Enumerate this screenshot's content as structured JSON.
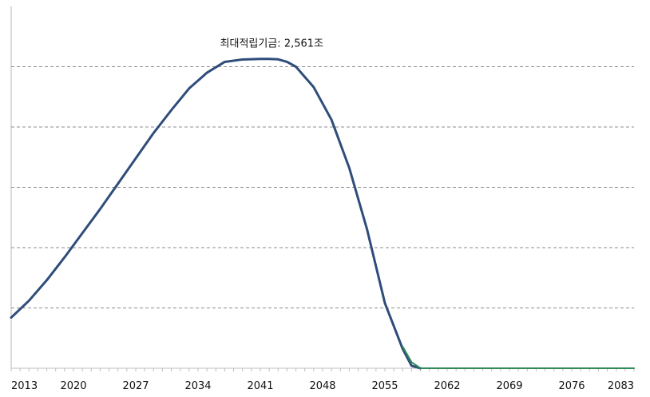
{
  "chart_data": {
    "type": "line",
    "title": "",
    "xlabel": "",
    "ylabel": "",
    "x_ticks": [
      "2013",
      "2020",
      "2027",
      "2034",
      "2041",
      "2048",
      "2055",
      "2062",
      "2069",
      "2076",
      "2083"
    ],
    "xlim": [
      2013,
      2083
    ],
    "ylim": [
      0,
      3000
    ],
    "y_gridlines": [
      500,
      1000,
      1500,
      2000,
      2500
    ],
    "y_tick_labels_visible": false,
    "grid": "horizontal-dashed",
    "legend": "none",
    "annotation": {
      "text": "최대적립기금: 2,561조",
      "x": 2043,
      "y": 2561
    },
    "series": [
      {
        "color": "#2f4d7a",
        "x": [
          2013,
          2015,
          2017,
          2019,
          2021,
          2023,
          2025,
          2027,
          2029,
          2031,
          2033,
          2035,
          2037,
          2039,
          2041,
          2042,
          2043,
          2044,
          2045,
          2047,
          2049,
          2051,
          2053,
          2055,
          2057,
          2058,
          2059
        ],
        "y": [
          420,
          560,
          730,
          920,
          1120,
          1320,
          1530,
          1740,
          1950,
          2140,
          2320,
          2450,
          2540,
          2560,
          2565,
          2565,
          2561,
          2540,
          2500,
          2330,
          2060,
          1660,
          1150,
          540,
          160,
          20,
          0
        ]
      },
      {
        "color": "#2e8b57",
        "x": [
          2057,
          2058,
          2059,
          2060,
          2070,
          2083
        ],
        "y": [
          180,
          50,
          0,
          0,
          0,
          0
        ]
      }
    ]
  }
}
